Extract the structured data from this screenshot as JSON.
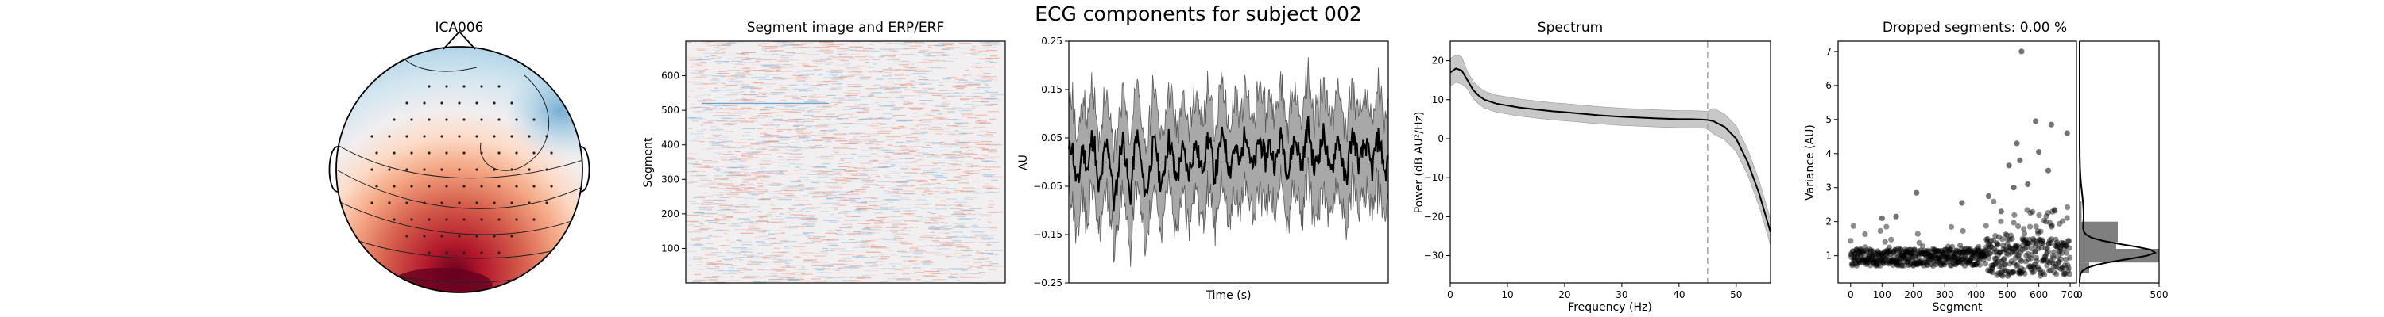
{
  "figure": {
    "suptitle": "ECG components for subject 002"
  },
  "topomap": {
    "title": "ICA006"
  },
  "chart_data": [
    {
      "type": "heatmap",
      "panel": "segment-image",
      "title": "Segment image and ERP/ERF",
      "xlabel": "",
      "ylabel": "Segment",
      "ylim": [
        0,
        700
      ],
      "yticks": [
        100,
        200,
        300,
        400,
        500,
        600
      ],
      "colormap": "RdBu_r"
    },
    {
      "type": "line",
      "panel": "erp",
      "title": "",
      "xlabel": "Time (s)",
      "ylabel": "AU",
      "ylim": [
        -0.25,
        0.25
      ],
      "yticks": [
        -0.25,
        -0.15,
        -0.05,
        0.05,
        0.15,
        0.25
      ],
      "ytick_labels": [
        "−0.25",
        "−0.15",
        "−0.05",
        "0.05",
        "0.15",
        "0.25"
      ],
      "series": [
        {
          "values": [
            0.02,
            0.04,
            -0.03,
            -0.05,
            0.03,
            0.01,
            -0.02,
            0.05,
            0.04,
            -0.06,
            -0.04,
            0.02,
            0.04,
            -0.01,
            -0.09,
            -0.04,
            0.03,
            0.05,
            -0.02,
            -0.08,
            0.0,
            0.06,
            0.02,
            -0.04,
            -0.07,
            -0.02,
            0.03,
            0.04,
            -0.03,
            -0.05,
            0.01,
            0.05,
            0.02,
            -0.04,
            -0.02,
            0.03,
            0.01,
            -0.03,
            0.0,
            0.04,
            0.02,
            -0.02,
            0.01,
            0.05,
            0.03,
            -0.03,
            -0.01,
            0.04,
            0.06,
            0.01,
            -0.02,
            0.03,
            0.02,
            -0.01,
            0.04,
            0.07,
            0.02,
            -0.02,
            0.01,
            0.05,
            0.03,
            0.0,
            0.04,
            0.02,
            -0.01,
            0.03,
            0.06,
            0.01,
            -0.03,
            0.02,
            0.05,
            0.03,
            -0.01,
            0.02,
            0.08,
            0.04,
            -0.02,
            0.01,
            0.03,
            0.06,
            0.02,
            -0.03,
            0.0,
            0.05,
            0.04,
            -0.02,
            -0.04,
            0.02,
            0.06,
            0.03,
            -0.01,
            0.02,
            0.04,
            0.01,
            -0.02,
            0.03,
            0.05,
            0.02,
            -0.03,
            0.01
          ],
          "band": 0.1
        }
      ],
      "hline": 0
    },
    {
      "type": "line",
      "panel": "spectrum",
      "title": "Spectrum",
      "xlabel": "Frequency (Hz)",
      "ylabel": "Power (dB AU²/Hz)",
      "xlim": [
        0,
        56
      ],
      "ylim": [
        -37,
        25
      ],
      "xticks": [
        0,
        10,
        20,
        30,
        40,
        50
      ],
      "yticks": [
        -30,
        -20,
        -10,
        0,
        10,
        20
      ],
      "ytick_labels": [
        "−30",
        "−20",
        "−10",
        "0",
        "10",
        "20"
      ],
      "series": [
        {
          "x": [
            0,
            1,
            2,
            3,
            4,
            5,
            6,
            8,
            10,
            12,
            15,
            18,
            20,
            23,
            26,
            30,
            33,
            36,
            40,
            42,
            44,
            45,
            46,
            48,
            50,
            52,
            54,
            56
          ],
          "values": [
            17,
            18,
            17.5,
            15,
            12.5,
            11,
            10,
            9,
            8.5,
            8,
            7.5,
            7,
            6.8,
            6.4,
            6,
            5.6,
            5.4,
            5.2,
            5,
            5,
            4.9,
            4.8,
            4.5,
            3,
            0,
            -6,
            -14,
            -24
          ],
          "band": 2.2
        }
      ],
      "vline": 45
    },
    {
      "type": "scatter",
      "panel": "variance",
      "title": "Dropped segments: 0.00 %",
      "xlabel": "Segment",
      "ylabel": "Variance (AU)",
      "xlim": [
        -40,
        720
      ],
      "ylim": [
        0.2,
        7.3
      ],
      "xticks": [
        0,
        100,
        200,
        300,
        400,
        500,
        600,
        700
      ],
      "yticks": [
        1,
        2,
        3,
        4,
        5,
        6,
        7
      ],
      "outliers": [
        {
          "x": 545,
          "y": 7.0
        },
        {
          "x": 590,
          "y": 4.95
        },
        {
          "x": 640,
          "y": 4.85
        },
        {
          "x": 530,
          "y": 4.3
        },
        {
          "x": 600,
          "y": 4.05
        },
        {
          "x": 690,
          "y": 4.6
        },
        {
          "x": 505,
          "y": 3.65
        },
        {
          "x": 540,
          "y": 3.8
        },
        {
          "x": 630,
          "y": 3.5
        },
        {
          "x": 565,
          "y": 3.1
        },
        {
          "x": 520,
          "y": 3.0
        },
        {
          "x": 440,
          "y": 2.75
        },
        {
          "x": 210,
          "y": 2.85
        },
        {
          "x": 355,
          "y": 2.55
        },
        {
          "x": 480,
          "y": 2.3
        },
        {
          "x": 100,
          "y": 2.1
        },
        {
          "x": 145,
          "y": 2.15
        }
      ]
    },
    {
      "type": "bar",
      "panel": "variance-histogram",
      "title": "",
      "xlabel": "",
      "ylabel": "",
      "xlim": [
        0,
        500
      ],
      "xticks": [
        0,
        500
      ],
      "bins": [
        {
          "y0": 0.5,
          "y1": 0.8,
          "count": 60
        },
        {
          "y0": 0.8,
          "y1": 1.2,
          "count": 500
        },
        {
          "y0": 1.2,
          "y1": 1.4,
          "count": 230
        },
        {
          "y0": 1.4,
          "y1": 2.0,
          "count": 240
        },
        {
          "y0": 2.0,
          "y1": 2.6,
          "count": 12
        },
        {
          "y0": 2.6,
          "y1": 7.0,
          "count": 3
        }
      ]
    }
  ]
}
